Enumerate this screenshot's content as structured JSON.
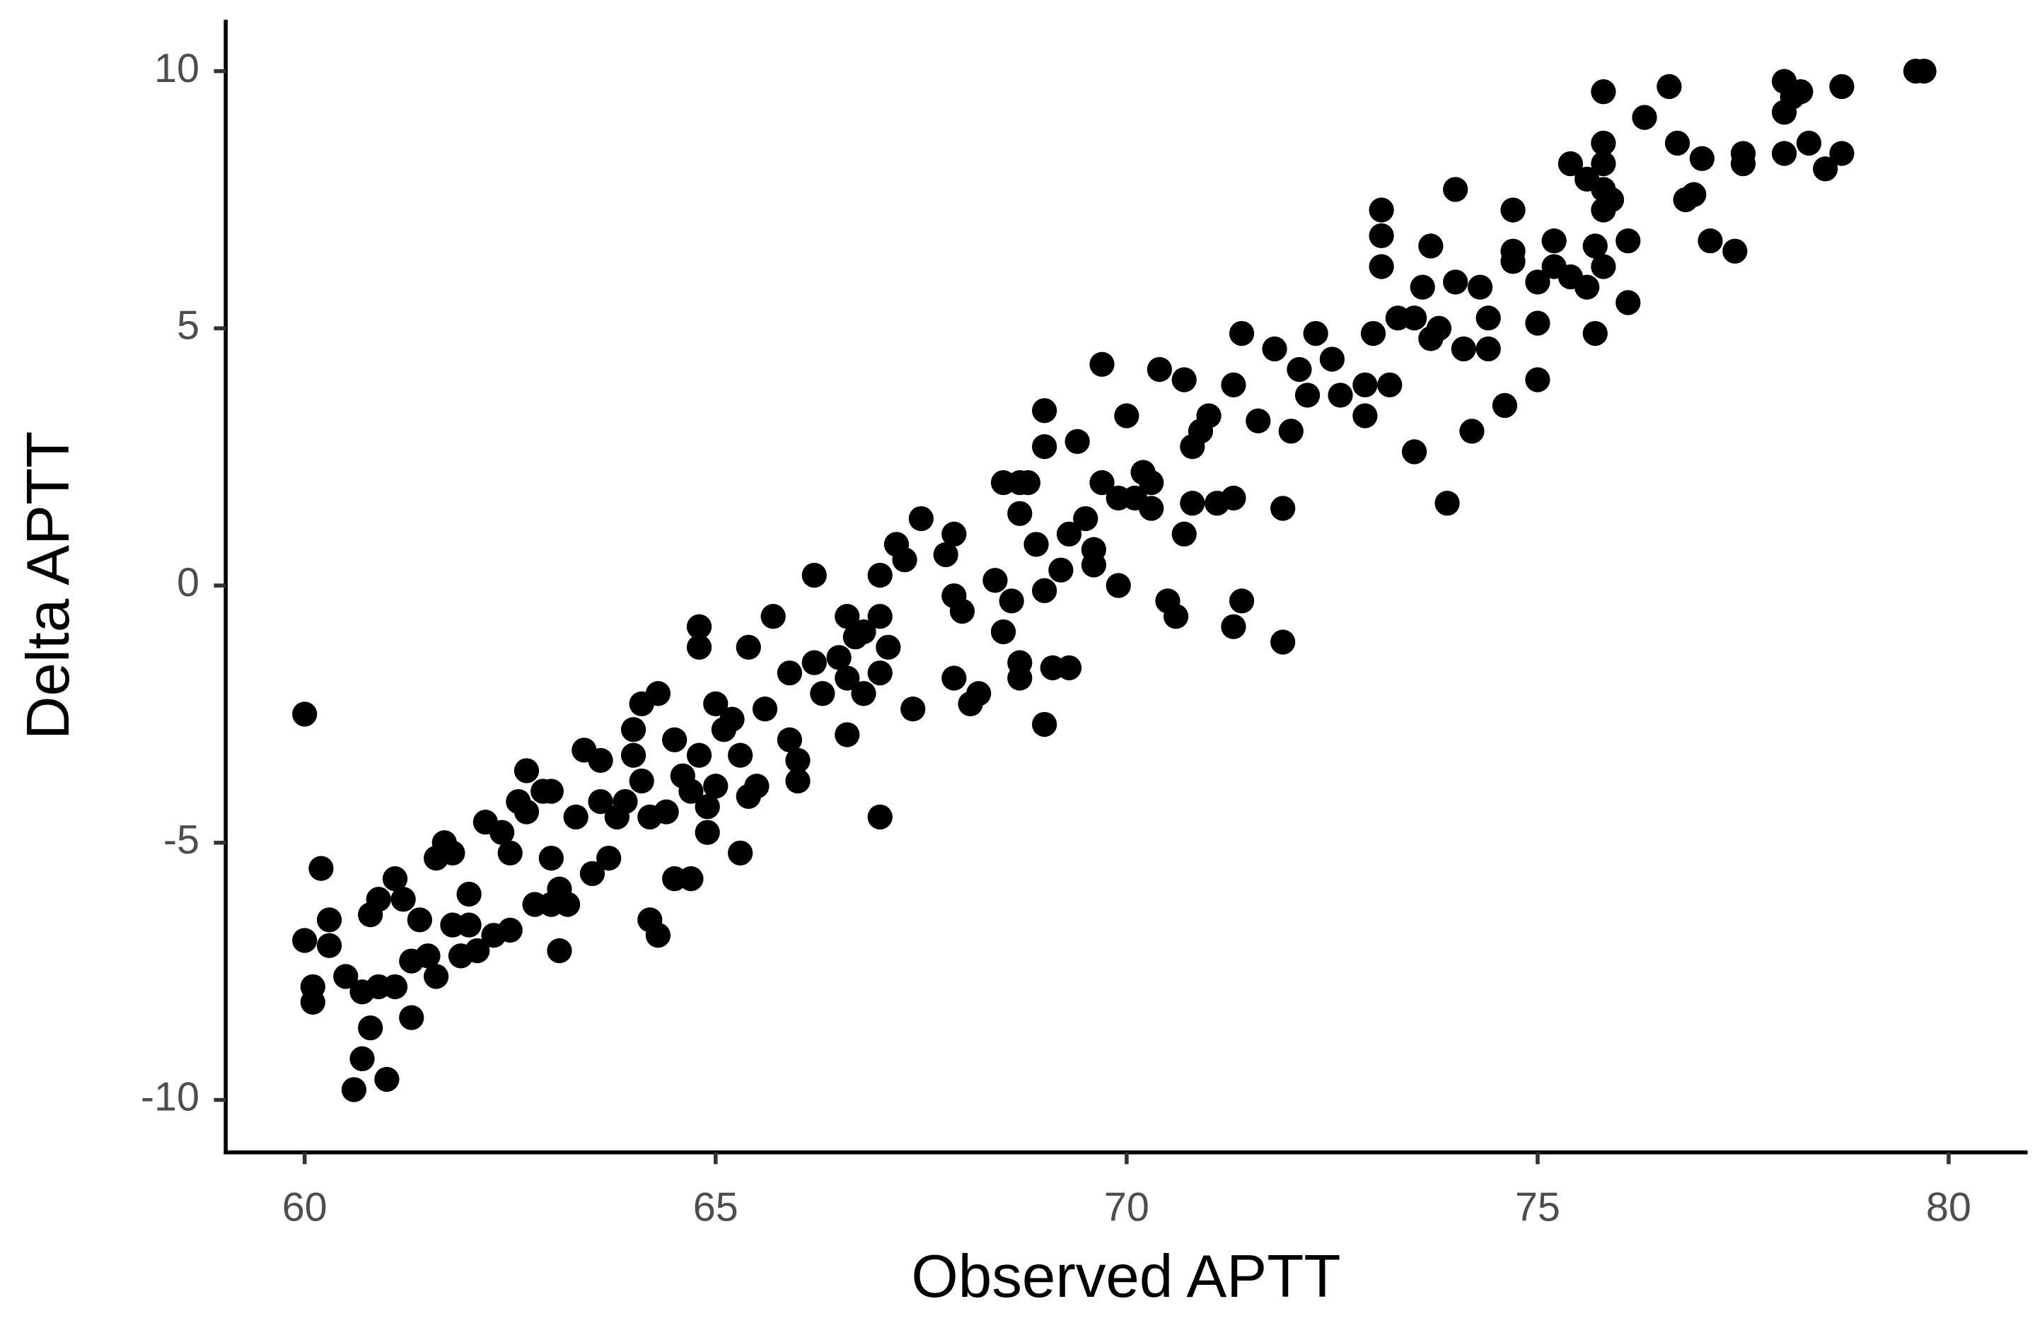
{
  "chart_data": {
    "type": "scatter",
    "x_label": "Observed APTT",
    "y_label": "Delta APTT",
    "color": "#000000",
    "xlim": [
      59.04,
      80.96
    ],
    "ylim": [
      -11.02,
      11.0
    ],
    "xticks": [
      60,
      65,
      70,
      75,
      80
    ],
    "yticks": [
      -10,
      -5,
      0,
      5,
      10
    ],
    "x": [
      60.0,
      60.0,
      60.1,
      60.1,
      60.2,
      60.3,
      60.3,
      60.5,
      60.6,
      60.7,
      60.7,
      60.8,
      60.8,
      60.9,
      60.9,
      61.0,
      61.1,
      61.1,
      61.2,
      61.3,
      61.3,
      61.4,
      61.5,
      61.6,
      61.6,
      61.7,
      61.8,
      61.8,
      61.9,
      62.0,
      62.0,
      62.1,
      62.2,
      62.3,
      62.4,
      62.5,
      62.5,
      62.6,
      62.7,
      62.7,
      62.8,
      62.9,
      63.0,
      63.0,
      63.1,
      63.1,
      63.0,
      63.2,
      63.3,
      63.4,
      63.5,
      63.6,
      63.6,
      63.7,
      63.8,
      63.9,
      64.0,
      64.0,
      64.1,
      64.1,
      64.2,
      64.2,
      64.3,
      64.3,
      64.4,
      64.5,
      64.5,
      64.6,
      64.7,
      64.7,
      64.8,
      64.8,
      64.8,
      64.9,
      64.9,
      65.0,
      65.0,
      65.1,
      65.2,
      65.3,
      65.3,
      65.4,
      65.5,
      65.4,
      65.6,
      65.7,
      65.9,
      65.9,
      66.0,
      66.0,
      66.2,
      66.2,
      66.3,
      66.5,
      66.6,
      66.6,
      66.6,
      66.7,
      66.8,
      66.8,
      67.0,
      67.0,
      67.0,
      67.0,
      67.1,
      67.2,
      67.3,
      67.4,
      67.5,
      67.8,
      67.9,
      67.9,
      68.0,
      67.9,
      68.1,
      68.2,
      68.4,
      68.5,
      68.5,
      68.6,
      68.7,
      68.7,
      68.8,
      68.7,
      68.7,
      68.9,
      69.0,
      69.0,
      69.0,
      69.0,
      69.1,
      69.3,
      69.2,
      69.3,
      69.4,
      69.5,
      69.6,
      69.6,
      69.7,
      69.7,
      69.9,
      69.9,
      70.0,
      70.1,
      70.2,
      70.3,
      70.3,
      70.4,
      70.5,
      70.6,
      70.7,
      70.7,
      70.8,
      70.8,
      70.9,
      71.0,
      71.1,
      71.3,
      71.3,
      71.3,
      71.4,
      71.4,
      71.6,
      71.8,
      71.9,
      71.9,
      72.0,
      72.1,
      72.2,
      72.3,
      72.5,
      72.6,
      72.9,
      72.9,
      73.0,
      73.1,
      73.1,
      73.1,
      73.2,
      73.3,
      73.5,
      73.5,
      73.6,
      73.7,
      73.7,
      73.8,
      73.9,
      74.0,
      74.0,
      74.1,
      74.2,
      74.3,
      74.4,
      74.4,
      74.6,
      74.7,
      74.7,
      74.7,
      75.0,
      75.0,
      75.0,
      75.2,
      75.2,
      75.4,
      75.4,
      75.6,
      75.6,
      75.7,
      75.8,
      75.9,
      75.8,
      75.8,
      75.8,
      75.8,
      75.8,
      75.7,
      76.1,
      76.1,
      76.3,
      76.6,
      76.7,
      76.8,
      76.9,
      77.0,
      77.1,
      77.4,
      77.5,
      77.5,
      78.0,
      78.0,
      78.1,
      78.2,
      78.0,
      78.3,
      78.5,
      78.7,
      78.7,
      79.6,
      79.7
    ],
    "values": [
      -2.5,
      -6.9,
      -7.8,
      -8.1,
      -5.5,
      -7.0,
      -6.5,
      -7.6,
      -9.8,
      -7.9,
      -9.2,
      -6.4,
      -8.6,
      -7.8,
      -6.1,
      -9.6,
      -5.7,
      -7.8,
      -6.1,
      -7.3,
      -8.4,
      -6.5,
      -7.2,
      -7.6,
      -5.3,
      -5.0,
      -6.6,
      -5.2,
      -7.2,
      -6.0,
      -6.6,
      -7.1,
      -4.6,
      -6.8,
      -4.8,
      -5.2,
      -6.7,
      -4.2,
      -3.6,
      -4.4,
      -6.2,
      -4.0,
      -4.0,
      -5.3,
      -7.1,
      -5.9,
      -6.2,
      -6.2,
      -4.5,
      -3.2,
      -5.6,
      -4.2,
      -3.4,
      -5.3,
      -4.5,
      -4.2,
      -3.3,
      -2.8,
      -2.3,
      -3.8,
      -4.5,
      -6.5,
      -6.8,
      -2.1,
      -4.4,
      -3.0,
      -5.7,
      -3.7,
      -4.0,
      -5.7,
      -3.3,
      -0.8,
      -1.2,
      -4.3,
      -4.8,
      -2.3,
      -3.9,
      -2.8,
      -2.6,
      -3.3,
      -5.2,
      -4.1,
      -3.9,
      -1.2,
      -2.4,
      -0.6,
      -1.7,
      -3.0,
      -3.4,
      -3.8,
      -1.5,
      0.2,
      -2.1,
      -1.4,
      -0.6,
      -1.8,
      -2.9,
      -1.0,
      -2.1,
      -0.9,
      -1.7,
      -0.6,
      0.2,
      -4.5,
      -1.2,
      0.8,
      0.5,
      -2.4,
      1.3,
      0.6,
      1.0,
      -0.2,
      -0.5,
      -1.8,
      -2.3,
      -2.1,
      0.1,
      2.0,
      -0.9,
      -0.3,
      2.0,
      1.4,
      2.0,
      -1.5,
      -1.8,
      0.8,
      -0.1,
      2.7,
      3.4,
      -2.7,
      -1.6,
      -1.6,
      0.3,
      1.0,
      2.8,
      1.3,
      0.7,
      0.4,
      2.0,
      4.3,
      1.7,
      0,
      3.3,
      1.7,
      2.2,
      2.0,
      1.5,
      4.2,
      -0.3,
      -0.6,
      4.0,
      1.0,
      1.6,
      2.7,
      3.0,
      3.3,
      1.6,
      3.9,
      1.7,
      -0.8,
      -0.3,
      4.9,
      3.2,
      4.6,
      1.5,
      -1.1,
      3.0,
      4.2,
      3.7,
      4.9,
      4.4,
      3.7,
      3.9,
      3.3,
      4.9,
      7.3,
      6.8,
      6.2,
      3.9,
      5.2,
      5.2,
      2.6,
      5.8,
      6.6,
      4.8,
      5.0,
      1.6,
      5.9,
      7.7,
      4.6,
      3.0,
      5.8,
      5.2,
      4.6,
      3.5,
      6.5,
      7.3,
      6.3,
      5.1,
      5.9,
      4.0,
      6.7,
      6.2,
      8.2,
      6.0,
      5.8,
      7.9,
      6.6,
      7.7,
      7.5,
      9.6,
      8.6,
      8.2,
      7.3,
      6.2,
      4.9,
      5.5,
      6.7,
      9.1,
      9.7,
      8.6,
      7.5,
      7.6,
      8.3,
      6.7,
      6.5,
      8.2,
      8.4,
      9.8,
      9.2,
      9.5,
      9.6,
      8.4,
      8.6,
      8.1,
      8.4,
      9.7,
      10.0,
      10.0
    ]
  }
}
